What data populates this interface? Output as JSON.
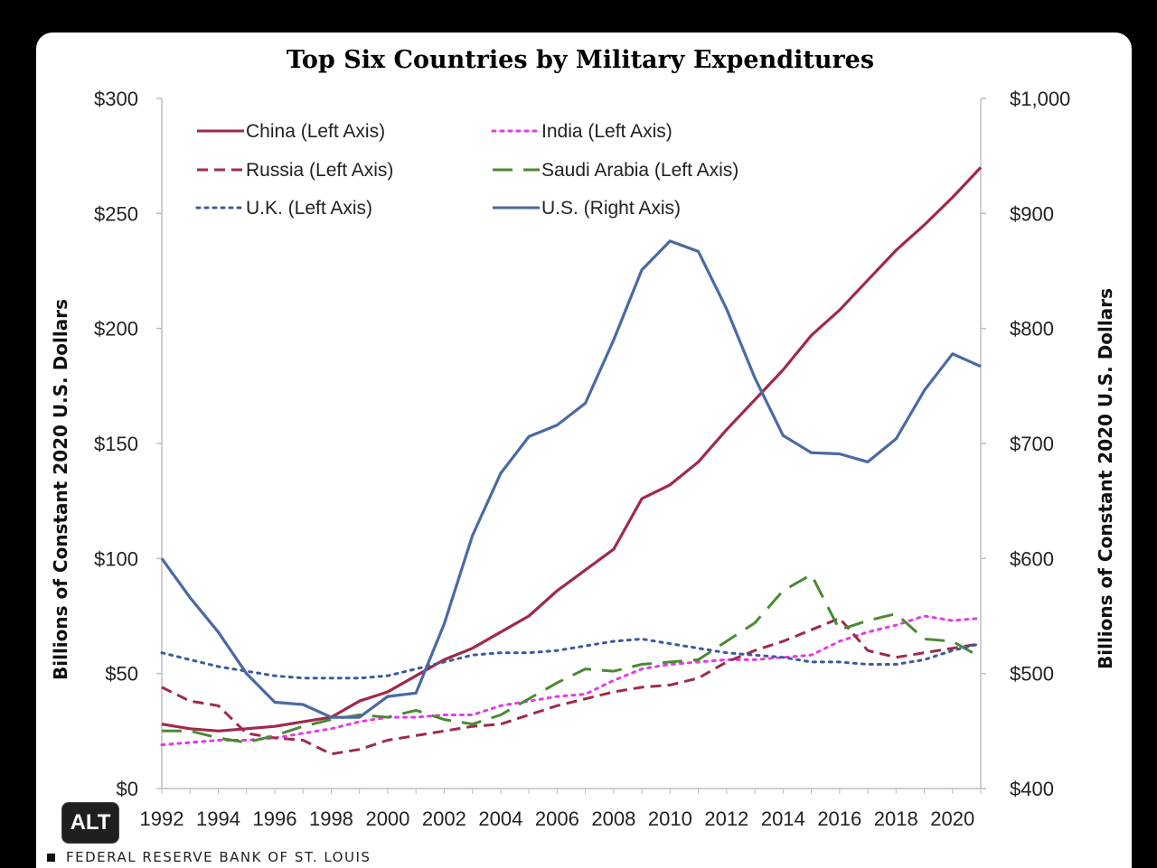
{
  "badge": {
    "alt_label": "ALT"
  },
  "source": {
    "text": "FEDERAL RESERVE BANK OF ST. LOUIS"
  },
  "chart_data": {
    "type": "line",
    "title": "Top Six Countries by Military Expenditures",
    "ylabel_left": "Billions of Constant  2020 U.S. Dollars",
    "ylabel_right": "Billions of Constant  2020 U.S. Dollars",
    "ylim_left": [
      0,
      300
    ],
    "ylim_right": [
      400,
      1000
    ],
    "xlim": [
      1992,
      2021
    ],
    "x_ticks": [
      "1992",
      "1994",
      "1996",
      "1998",
      "2000",
      "2002",
      "2004",
      "2006",
      "2008",
      "2010",
      "2012",
      "2014",
      "2016",
      "2018",
      "2020"
    ],
    "y_ticks_left": [
      "$0",
      "$50",
      "$100",
      "$150",
      "$200",
      "$250",
      "$300"
    ],
    "y_ticks_right": [
      "$400",
      "$500",
      "$600",
      "$700",
      "$800",
      "$900",
      "$1,000"
    ],
    "grid": false,
    "legend_placement": "top-left",
    "x": [
      1992,
      1993,
      1994,
      1995,
      1996,
      1997,
      1998,
      1999,
      2000,
      2001,
      2002,
      2003,
      2004,
      2005,
      2006,
      2007,
      2008,
      2009,
      2010,
      2011,
      2012,
      2013,
      2014,
      2015,
      2016,
      2017,
      2018,
      2019,
      2020,
      2021
    ],
    "series": [
      {
        "name": "China (Left Axis)",
        "axis": "left",
        "color": "#a0294a",
        "dash": "solid",
        "values": [
          28,
          26,
          25,
          26,
          27,
          29,
          31,
          38,
          42,
          49,
          56,
          61,
          68,
          75,
          86,
          95,
          104,
          126,
          132,
          142,
          156,
          169,
          182,
          197,
          208,
          221,
          234,
          245,
          257,
          270
        ]
      },
      {
        "name": "India (Left Axis)",
        "axis": "left",
        "color": "#e639e6",
        "dash": "dotted",
        "values": [
          19,
          20,
          21,
          21,
          22,
          24,
          26,
          29,
          31,
          31,
          32,
          32,
          36,
          38,
          40,
          41,
          47,
          52,
          54,
          55,
          56,
          56,
          57,
          58,
          64,
          68,
          71,
          75,
          73,
          74
        ]
      },
      {
        "name": "Russia (Left Axis)",
        "axis": "left",
        "color": "#a0294a",
        "dash": "dashed",
        "values": [
          44,
          38,
          36,
          24,
          22,
          21,
          15,
          17,
          21,
          23,
          25,
          27,
          28,
          32,
          36,
          39,
          42,
          44,
          45,
          48,
          55,
          60,
          64,
          69,
          74,
          60,
          57,
          59,
          61,
          63
        ]
      },
      {
        "name": "Saudi Arabia (Left Axis)",
        "axis": "left",
        "color": "#4a8a32",
        "dash": "longdash",
        "values": [
          25,
          25,
          22,
          20,
          23,
          27,
          30,
          32,
          31,
          34,
          30,
          28,
          32,
          39,
          46,
          52,
          51,
          54,
          55,
          56,
          64,
          72,
          86,
          93,
          69,
          73,
          76,
          65,
          64,
          57
        ]
      },
      {
        "name": "U.K. (Left Axis)",
        "axis": "left",
        "color": "#3c5aa0",
        "dash": "dotted",
        "values": [
          59,
          56,
          53,
          51,
          49,
          48,
          48,
          48,
          49,
          52,
          55,
          58,
          59,
          59,
          60,
          62,
          64,
          65,
          63,
          61,
          59,
          58,
          57,
          55,
          55,
          54,
          54,
          56,
          60,
          63
        ]
      },
      {
        "name": "U.S. (Right Axis)",
        "axis": "right",
        "color": "#4a69a4",
        "dash": "solid",
        "values": [
          600,
          566,
          536,
          500,
          475,
          473,
          462,
          462,
          480,
          483,
          543,
          620,
          674,
          706,
          716,
          735,
          790,
          851,
          876,
          867,
          817,
          757,
          707,
          692,
          691,
          684,
          704,
          746,
          778,
          767
        ]
      }
    ]
  }
}
